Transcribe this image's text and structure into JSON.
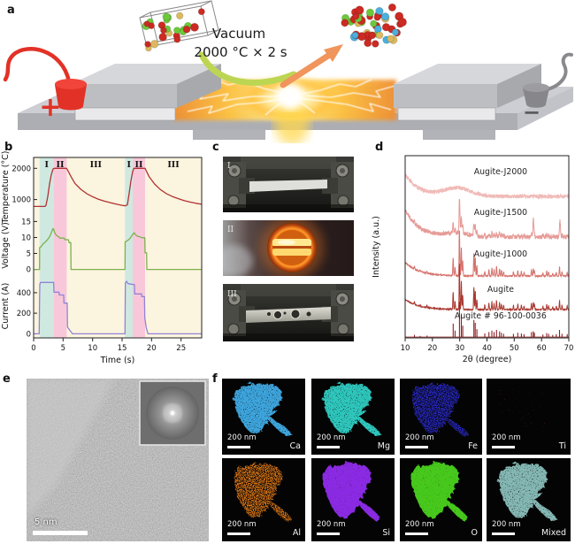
{
  "panels": {
    "a": "a",
    "b": "b",
    "c": "c",
    "d": "d",
    "e": "e",
    "f": "f"
  },
  "panel_a": {
    "vacuum_line1": "Vacuum",
    "vacuum_line2": "2000 °C × 2 s",
    "plus": "+",
    "minus": "−",
    "atom_colors": {
      "red": "#cc2a22",
      "green": "#6cc93a",
      "yellow": "#dcb95e",
      "blue": "#4ab0dd"
    }
  },
  "chart_data": [
    {
      "id": "panel-b",
      "type": "line",
      "xlabel": "Time (s)",
      "xlim": [
        0,
        28.5
      ],
      "xticks": [
        0,
        5,
        10,
        15,
        20,
        25
      ],
      "plot_bg": "#fbf4df",
      "regions": [
        {
          "label": "I",
          "x0": 1.0,
          "x1": 3.4,
          "color": "#cfe9e1"
        },
        {
          "label": "II",
          "x0": 3.4,
          "x1": 5.6,
          "color": "#f8c8da"
        },
        {
          "label": "III",
          "x0": 5.6,
          "x1": 15.5,
          "color": "none"
        },
        {
          "label": "I",
          "x0": 15.5,
          "x1": 16.8,
          "color": "#cfe9e1"
        },
        {
          "label": "II",
          "x0": 16.8,
          "x1": 18.9,
          "color": "#f8c8da"
        },
        {
          "label": "III",
          "x0": 18.9,
          "x1": 28.5,
          "color": "none"
        }
      ],
      "subplots": [
        {
          "ylabel": "Temperature (°C)",
          "yticks": [
            1000,
            2000
          ],
          "ylim": [
            450,
            2350
          ],
          "color": "#b23232",
          "series": [
            [
              0,
              780
            ],
            [
              1.9,
              780
            ],
            [
              2.1,
              820
            ],
            [
              2.4,
              1100
            ],
            [
              2.7,
              1500
            ],
            [
              3.0,
              1800
            ],
            [
              3.3,
              1980
            ],
            [
              3.5,
              2000
            ],
            [
              5.6,
              2000
            ],
            [
              5.9,
              1900
            ],
            [
              6.3,
              1750
            ],
            [
              7,
              1520
            ],
            [
              8,
              1330
            ],
            [
              9,
              1190
            ],
            [
              10,
              1090
            ],
            [
              11,
              1010
            ],
            [
              12,
              950
            ],
            [
              13,
              900
            ],
            [
              14,
              855
            ],
            [
              15,
              815
            ],
            [
              15.5,
              800
            ],
            [
              15.9,
              830
            ],
            [
              16.2,
              1200
            ],
            [
              16.5,
              1600
            ],
            [
              16.8,
              1900
            ],
            [
              17.0,
              2000
            ],
            [
              18.9,
              2000
            ],
            [
              19.2,
              1880
            ],
            [
              19.6,
              1730
            ],
            [
              20.5,
              1500
            ],
            [
              21.5,
              1320
            ],
            [
              22.5,
              1190
            ],
            [
              23.5,
              1100
            ],
            [
              24.5,
              1030
            ],
            [
              25.5,
              970
            ],
            [
              26.5,
              920
            ],
            [
              27.5,
              880
            ],
            [
              28.5,
              850
            ]
          ]
        },
        {
          "ylabel": "Voltage (V)",
          "yticks": [
            0,
            5,
            10,
            15
          ],
          "ylim": [
            -1.5,
            16.5
          ],
          "color": "#7cb14c",
          "series": [
            [
              0,
              0
            ],
            [
              1.0,
              0
            ],
            [
              1.02,
              6.8
            ],
            [
              1.3,
              7.2
            ],
            [
              1.6,
              8.0
            ],
            [
              2.0,
              8.6
            ],
            [
              2.4,
              9.4
            ],
            [
              2.7,
              10.2
            ],
            [
              2.9,
              11.0
            ],
            [
              3.1,
              12.0
            ],
            [
              3.25,
              12.8
            ],
            [
              3.4,
              12.6
            ],
            [
              3.55,
              11.6
            ],
            [
              3.8,
              10.8
            ],
            [
              4.1,
              10.4
            ],
            [
              4.5,
              9.8
            ],
            [
              5.2,
              9.8
            ],
            [
              5.3,
              9.3
            ],
            [
              5.9,
              9.3
            ],
            [
              6.0,
              8.4
            ],
            [
              6.3,
              8.4
            ],
            [
              6.35,
              0
            ],
            [
              15.5,
              0
            ],
            [
              15.52,
              8.6
            ],
            [
              15.9,
              9.0
            ],
            [
              16.3,
              9.6
            ],
            [
              16.6,
              10.4
            ],
            [
              16.9,
              11.2
            ],
            [
              17.05,
              11.5
            ],
            [
              17.25,
              10.9
            ],
            [
              17.6,
              10.4
            ],
            [
              18.0,
              10.2
            ],
            [
              18.4,
              9.9
            ],
            [
              18.85,
              9.9
            ],
            [
              18.9,
              5.2
            ],
            [
              19.15,
              5.2
            ],
            [
              19.2,
              0
            ],
            [
              28.5,
              0
            ]
          ]
        },
        {
          "ylabel": "Current (A)",
          "yticks": [
            0,
            200,
            400
          ],
          "ylim": [
            -40,
            580
          ],
          "color": "#9183d6",
          "series": [
            [
              0,
              0
            ],
            [
              0.95,
              0
            ],
            [
              1.0,
              320
            ],
            [
              1.05,
              480
            ],
            [
              1.15,
              500
            ],
            [
              3.4,
              500
            ],
            [
              3.45,
              405
            ],
            [
              4.3,
              405
            ],
            [
              4.35,
              378
            ],
            [
              5.1,
              378
            ],
            [
              5.15,
              298
            ],
            [
              5.7,
              298
            ],
            [
              5.75,
              65
            ],
            [
              6.2,
              30
            ],
            [
              6.6,
              0
            ],
            [
              15.5,
              0
            ],
            [
              15.55,
              495
            ],
            [
              15.75,
              512
            ],
            [
              16.0,
              488
            ],
            [
              17.1,
              478
            ],
            [
              17.15,
              388
            ],
            [
              18.3,
              388
            ],
            [
              18.35,
              362
            ],
            [
              18.8,
              362
            ],
            [
              18.85,
              155
            ],
            [
              19.1,
              60
            ],
            [
              19.4,
              0
            ],
            [
              28.5,
              0
            ]
          ]
        }
      ]
    },
    {
      "id": "panel-d",
      "type": "line",
      "xlabel": "2θ (degree)",
      "ylabel": "Intensity (a.u.)",
      "xlim": [
        10,
        70
      ],
      "xticks": [
        10,
        20,
        30,
        40,
        50,
        60,
        70
      ],
      "peaks": [
        [
          13.4,
          0.06
        ],
        [
          15.5,
          0.03
        ],
        [
          18.0,
          0.04
        ],
        [
          27.6,
          0.38
        ],
        [
          28.3,
          0.18
        ],
        [
          29.9,
          1.0
        ],
        [
          30.6,
          0.62
        ],
        [
          31.1,
          0.32
        ],
        [
          35.2,
          0.48
        ],
        [
          35.7,
          0.4
        ],
        [
          36.3,
          0.22
        ],
        [
          39.2,
          0.1
        ],
        [
          40.7,
          0.14
        ],
        [
          41.8,
          0.18
        ],
        [
          42.6,
          0.14
        ],
        [
          43.5,
          0.2
        ],
        [
          44.6,
          0.16
        ],
        [
          45.3,
          0.12
        ],
        [
          46.1,
          0.09
        ],
        [
          49.7,
          0.09
        ],
        [
          51.3,
          0.12
        ],
        [
          52.6,
          0.1
        ],
        [
          53.6,
          0.08
        ],
        [
          56.3,
          0.14
        ],
        [
          57.0,
          0.16
        ],
        [
          57.4,
          0.12
        ],
        [
          60.5,
          0.07
        ],
        [
          61.9,
          0.11
        ],
        [
          62.6,
          0.09
        ],
        [
          64.1,
          0.06
        ],
        [
          65.4,
          0.08
        ],
        [
          66.6,
          0.2
        ],
        [
          67.5,
          0.09
        ],
        [
          69.4,
          0.08
        ]
      ],
      "traces": [
        {
          "name": "Augite-J2000",
          "color": "#f0bab7",
          "kind": "amorphous",
          "noise": 0.05,
          "tail": 0.55,
          "hump": [
            29,
            7,
            0.2
          ]
        },
        {
          "name": "Augite-J1500",
          "color": "#e69b97",
          "kind": "noisy",
          "noise": 0.045,
          "tail": 0.6,
          "peak_scale": 0.55,
          "sigma": 0.22,
          "hump": [
            29,
            6,
            0.08
          ],
          "extra_peaks": [
            [
              30.0,
              0.25
            ],
            [
              57.0,
              0.35
            ],
            [
              66.8,
              0.3
            ]
          ]
        },
        {
          "name": "Augite-J1000",
          "color": "#d5736d",
          "kind": "crystalline",
          "noise": 0.012,
          "tail": 0.28,
          "peak_scale": 0.95,
          "sigma": 0.17
        },
        {
          "name": "Augite",
          "color": "#a93a32",
          "kind": "crystalline",
          "noise": 0.01,
          "tail": 0.22,
          "peak_scale": 1.0,
          "sigma": 0.16
        },
        {
          "name": "Augite # 96-100-0036",
          "color": "#8e2025",
          "kind": "sticks"
        }
      ]
    }
  ],
  "panel_c": {
    "photos": [
      {
        "label": "I",
        "description": "sample strip clamped before flash"
      },
      {
        "label": "II",
        "description": "glowing sample during flash heating"
      },
      {
        "label": "III",
        "description": "melted strip after flash"
      }
    ]
  },
  "panel_e": {
    "scale_bar": "5 nm"
  },
  "panel_f": {
    "scale_bar": "200 nm",
    "maps": [
      {
        "element": "Ca",
        "color": "#3da4dc",
        "density": "dense"
      },
      {
        "element": "Mg",
        "color": "#2fc7bd",
        "density": "dense"
      },
      {
        "element": "Fe",
        "color": "#2a2ad0",
        "density": "medium"
      },
      {
        "element": "Ti",
        "color": "#c22ba0",
        "density": "sparse"
      },
      {
        "element": "Al",
        "color": "#e07818",
        "density": "medium"
      },
      {
        "element": "Si",
        "color": "#8a2be2",
        "density": "solid"
      },
      {
        "element": "O",
        "color": "#46c81e",
        "density": "solid"
      },
      {
        "element": "Mixed",
        "color": "#85b8b4",
        "density": "dense"
      }
    ]
  }
}
